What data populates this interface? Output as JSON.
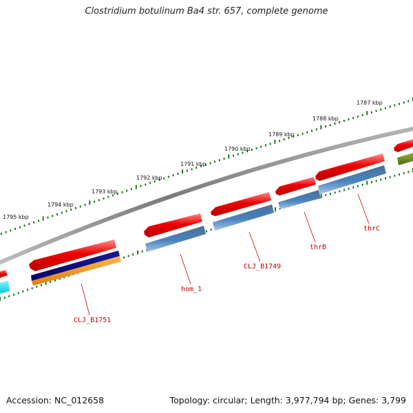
{
  "title": "Clostridium botulinum Ba4 str. 657, complete genome",
  "accession": "Accession: NC_012658",
  "summary": "Topology: circular; Length: 3,977,794 bp; Genes: 3,799",
  "colors": {
    "backbone": "#8c8c8c",
    "cds": "#e00000",
    "gene": "#4a7fb5",
    "trna": "#0b0b80",
    "misc": "#f0901c",
    "rrna": "#00d8e8",
    "other": "#5c7f1c",
    "ticks": "#1a7a1a",
    "label_line": "#cc0000"
  },
  "ticks": [
    {
      "label": "1787 kbp"
    },
    {
      "label": "1788 kbp"
    },
    {
      "label": "1789 kbp"
    },
    {
      "label": "1790 kbp"
    },
    {
      "label": "1791 kbp"
    },
    {
      "label": "1792 kbp"
    },
    {
      "label": "1793 kbp"
    },
    {
      "label": "1794 kbp"
    },
    {
      "label": "1795 kbp"
    }
  ],
  "features": [
    {
      "label": "CLJ_B1751"
    },
    {
      "label": "hom_1"
    },
    {
      "label": "CLJ_B1749"
    },
    {
      "label": "thrB"
    },
    {
      "label": "thrC"
    }
  ]
}
